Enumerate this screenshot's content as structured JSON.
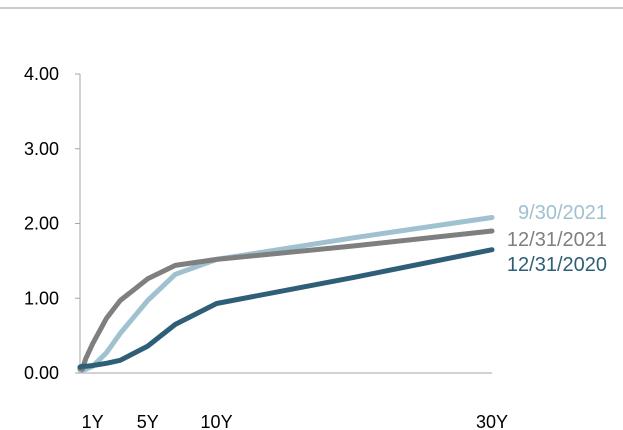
{
  "chart_data": {
    "type": "line",
    "title": "",
    "xlabel": "",
    "ylabel": "",
    "ylim": [
      0,
      4
    ],
    "grid": false,
    "legend": "inline-right",
    "y_ticks": [
      "0.00",
      "1.00",
      "2.00",
      "3.00",
      "4.00"
    ],
    "x_tick_labels": [
      {
        "label": "1Y",
        "x": 1
      },
      {
        "label": "5Y",
        "x": 5
      },
      {
        "label": "10Y",
        "x": 10
      },
      {
        "label": "30Y",
        "x": 30
      }
    ],
    "x_range": [
      0.083,
      30
    ],
    "series": [
      {
        "name": "9/30/2021",
        "color": "#9fc1d0",
        "points": [
          [
            0.083,
            0.04
          ],
          [
            0.25,
            0.04
          ],
          [
            0.5,
            0.05
          ],
          [
            1,
            0.09
          ],
          [
            2,
            0.27
          ],
          [
            3,
            0.53
          ],
          [
            5,
            0.97
          ],
          [
            7,
            1.32
          ],
          [
            10,
            1.52
          ],
          [
            20,
            1.81
          ],
          [
            30,
            2.08
          ]
        ]
      },
      {
        "name": "12/31/2021",
        "color": "#7f7f7f",
        "points": [
          [
            0.083,
            0.06
          ],
          [
            0.25,
            0.05
          ],
          [
            0.5,
            0.19
          ],
          [
            1,
            0.39
          ],
          [
            2,
            0.73
          ],
          [
            3,
            0.97
          ],
          [
            5,
            1.26
          ],
          [
            7,
            1.44
          ],
          [
            10,
            1.52
          ],
          [
            20,
            1.7
          ],
          [
            30,
            1.9
          ]
        ]
      },
      {
        "name": "12/31/2020",
        "color": "#2f5f77",
        "points": [
          [
            0.083,
            0.08
          ],
          [
            0.25,
            0.09
          ],
          [
            0.5,
            0.09
          ],
          [
            1,
            0.1
          ],
          [
            2,
            0.13
          ],
          [
            3,
            0.17
          ],
          [
            5,
            0.36
          ],
          [
            7,
            0.65
          ],
          [
            10,
            0.93
          ],
          [
            20,
            1.28
          ],
          [
            30,
            1.65
          ]
        ]
      }
    ]
  }
}
